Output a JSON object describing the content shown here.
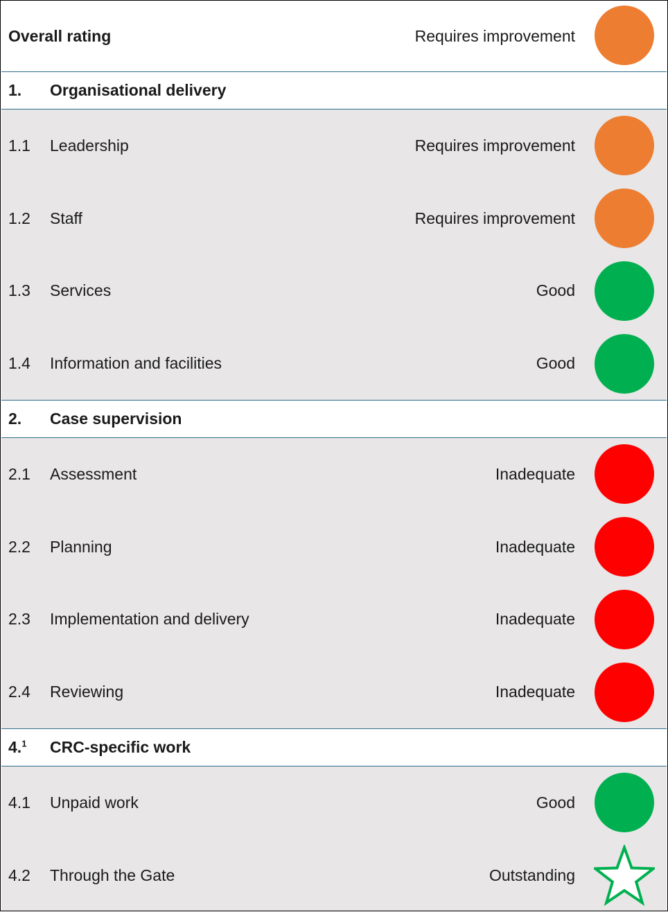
{
  "overall": {
    "label": "Overall rating",
    "rating": "Requires improvement",
    "color": "#ed7d31"
  },
  "sections": [
    {
      "number": "1.",
      "number_sup": "",
      "title": "Organisational delivery",
      "items": [
        {
          "number": "1.1",
          "label": "Leadership",
          "rating": "Requires improvement",
          "color": "#ed7d31",
          "icon": "circle-icon"
        },
        {
          "number": "1.2",
          "label": "Staff",
          "rating": "Requires improvement",
          "color": "#ed7d31",
          "icon": "circle-icon"
        },
        {
          "number": "1.3",
          "label": "Services",
          "rating": "Good",
          "color": "#00b050",
          "icon": "circle-icon"
        },
        {
          "number": "1.4",
          "label": "Information and facilities",
          "rating": "Good",
          "color": "#00b050",
          "icon": "circle-icon"
        }
      ]
    },
    {
      "number": "2.",
      "number_sup": "",
      "title": "Case supervision",
      "items": [
        {
          "number": "2.1",
          "label": "Assessment",
          "rating": "Inadequate",
          "color": "#ff0000",
          "icon": "circle-icon"
        },
        {
          "number": "2.2",
          "label": "Planning",
          "rating": "Inadequate",
          "color": "#ff0000",
          "icon": "circle-icon"
        },
        {
          "number": "2.3",
          "label": "Implementation and delivery",
          "rating": "Inadequate",
          "color": "#ff0000",
          "icon": "circle-icon"
        },
        {
          "number": "2.4",
          "label": "Reviewing",
          "rating": "Inadequate",
          "color": "#ff0000",
          "icon": "circle-icon"
        }
      ]
    },
    {
      "number": "4.",
      "number_sup": "1",
      "title": "CRC-specific work",
      "items": [
        {
          "number": "4.1",
          "label": "Unpaid work",
          "rating": "Good",
          "color": "#00b050",
          "icon": "circle-icon"
        },
        {
          "number": "4.2",
          "label": "Through the Gate",
          "rating": "Outstanding",
          "color": "#00b050",
          "icon": "star-outline-icon"
        }
      ]
    }
  ]
}
